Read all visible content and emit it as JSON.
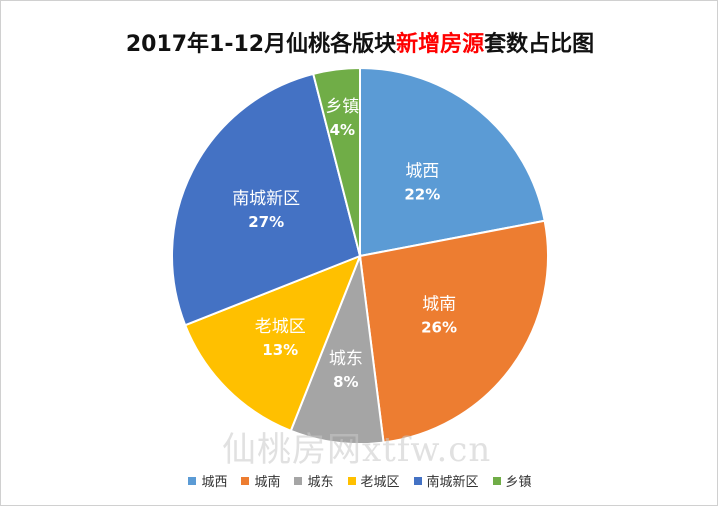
{
  "colors": {
    "city_west": "#5b9bd5",
    "city_south": "#ed7d31",
    "city_east": "#a5a5a5",
    "old_town": "#ffc000",
    "south_new_district": "#4472c4",
    "township": "#70ad47"
  },
  "title": {
    "prefix": "2017年1-12月仙桃各版块",
    "highlight": "新增房源",
    "suffix": "套数占比图"
  },
  "watermark": "仙桃房网xtfw.cn",
  "chart_data": {
    "type": "pie",
    "title": "2017年1-12月仙桃各版块新增房源套数占比图",
    "start_angle_deg": 0,
    "direction": "clockwise",
    "legend_position": "bottom",
    "slices": [
      {
        "label": "城西",
        "value": 22,
        "value_label": "22%",
        "color": "#5b9bd5"
      },
      {
        "label": "城南",
        "value": 26,
        "value_label": "26%",
        "color": "#ed7d31"
      },
      {
        "label": "城东",
        "value": 8,
        "value_label": "8%",
        "color": "#a5a5a5"
      },
      {
        "label": "老城区",
        "value": 13,
        "value_label": "13%",
        "color": "#ffc000"
      },
      {
        "label": "南城新区",
        "value": 27,
        "value_label": "27%",
        "color": "#4472c4"
      },
      {
        "label": "乡镇",
        "value": 4,
        "value_label": "4%",
        "color": "#70ad47"
      }
    ]
  },
  "legend": {
    "items": [
      "城西",
      "城南",
      "城东",
      "老城区",
      "南城新区",
      "乡镇"
    ]
  }
}
